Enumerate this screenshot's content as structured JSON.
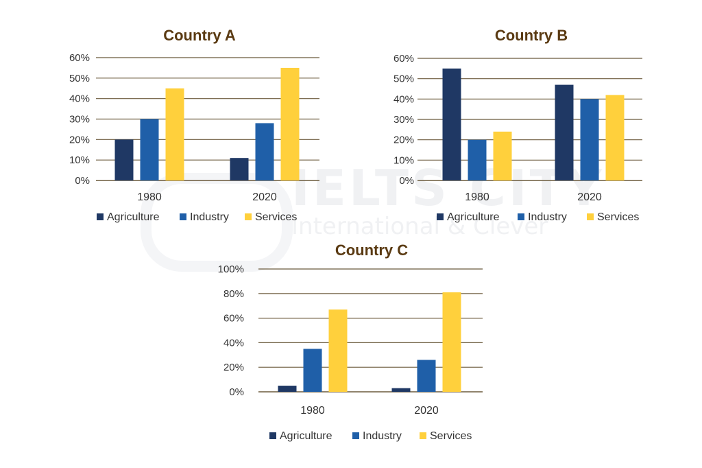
{
  "watermark": {
    "brand": "IELTS CITY",
    "tagline": "International & Clever"
  },
  "colors": {
    "agriculture": "#1f3864",
    "industry": "#1f5fa8",
    "services": "#ffd03c",
    "title": "#5a3a12",
    "grid": "#6b5a3c",
    "text": "#333333"
  },
  "chart_data": [
    {
      "type": "bar",
      "title": "Country A",
      "categories": [
        "1980",
        "2020"
      ],
      "series": [
        {
          "name": "Agriculture",
          "values": [
            20,
            11
          ]
        },
        {
          "name": "Industry",
          "values": [
            30,
            28
          ]
        },
        {
          "name": "Services",
          "values": [
            45,
            55
          ]
        }
      ],
      "ylim": [
        0,
        60
      ],
      "yticks": [
        "0%",
        "10%",
        "20%",
        "30%",
        "40%",
        "50%",
        "60%"
      ],
      "legend": "bottom"
    },
    {
      "type": "bar",
      "title": "Country B",
      "categories": [
        "1980",
        "2020"
      ],
      "series": [
        {
          "name": "Agriculture",
          "values": [
            55,
            47
          ]
        },
        {
          "name": "Industry",
          "values": [
            20,
            40
          ]
        },
        {
          "name": "Services",
          "values": [
            24,
            42
          ]
        }
      ],
      "ylim": [
        0,
        60
      ],
      "yticks": [
        "0%",
        "10%",
        "20%",
        "30%",
        "40%",
        "50%",
        "60%"
      ],
      "legend": "bottom"
    },
    {
      "type": "bar",
      "title": "Country C",
      "categories": [
        "1980",
        "2020"
      ],
      "series": [
        {
          "name": "Agriculture",
          "values": [
            5,
            3
          ]
        },
        {
          "name": "Industry",
          "values": [
            35,
            26
          ]
        },
        {
          "name": "Services",
          "values": [
            67,
            81
          ]
        }
      ],
      "ylim": [
        0,
        100
      ],
      "yticks": [
        "0%",
        "20%",
        "40%",
        "60%",
        "80%",
        "100%"
      ],
      "legend": "bottom"
    }
  ]
}
